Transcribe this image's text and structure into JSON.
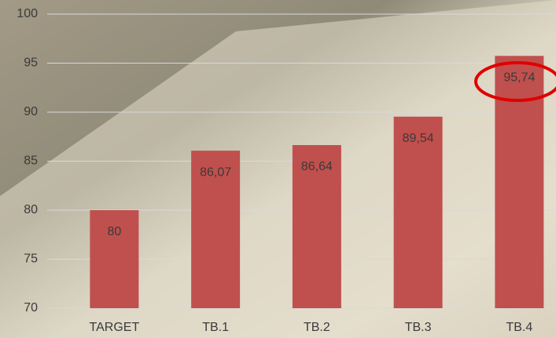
{
  "chart_data": {
    "type": "bar",
    "categories": [
      "TARGET",
      "TB.1",
      "TB.2",
      "TB.3",
      "TB.4"
    ],
    "values": [
      80,
      86.07,
      86.64,
      89.54,
      95.74
    ],
    "value_labels": [
      "80",
      "86,07",
      "86,64",
      "89,54",
      "95,74"
    ],
    "color": "#c0504d",
    "ylim": [
      70,
      100
    ],
    "yticks": [
      70,
      75,
      80,
      85,
      90,
      95,
      100
    ],
    "grid": true
  }
}
